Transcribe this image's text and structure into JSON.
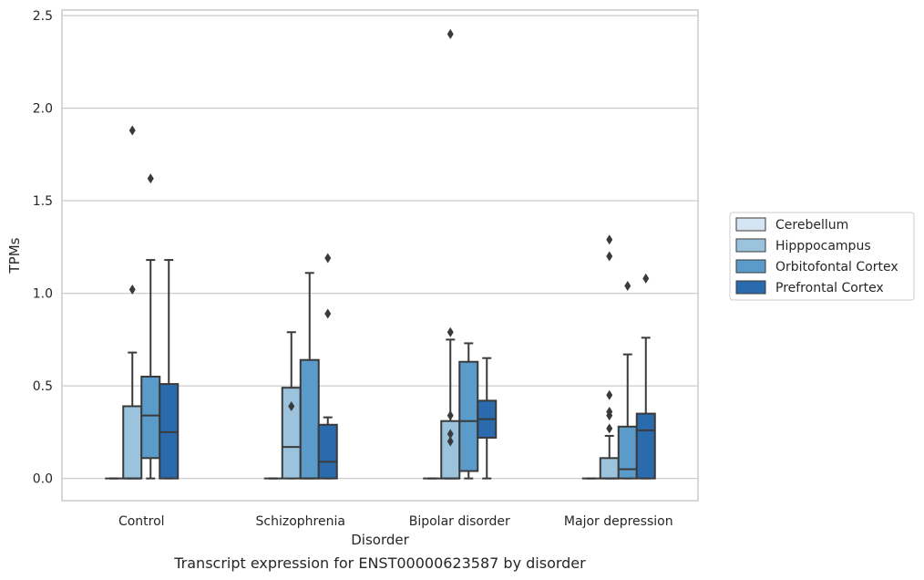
{
  "chart_data": {
    "type": "box",
    "title": "",
    "caption": "Transcript expression for ENST00000623587 by disorder",
    "xlabel": "Disorder",
    "ylabel": "TPMs",
    "ylim": [
      -0.12,
      2.53
    ],
    "yticks": [
      0.0,
      0.5,
      1.0,
      1.5,
      2.0,
      2.5
    ],
    "ytick_labels": [
      "0.0",
      "0.5",
      "1.0",
      "1.5",
      "2.0",
      "2.5"
    ],
    "grid": "horizontal",
    "legend_position": "right",
    "categories": [
      "Control",
      "Schizophrenia",
      "Bipolar disorder",
      "Major depression"
    ],
    "series": [
      {
        "name": "Cerebellum",
        "color": "#d4e4f3",
        "boxes": [
          {
            "whisker_low": 0,
            "q1": 0,
            "median": 0,
            "q3": 0,
            "whisker_high": 0,
            "outliers": []
          },
          {
            "whisker_low": 0,
            "q1": 0,
            "median": 0,
            "q3": 0,
            "whisker_high": 0,
            "outliers": []
          },
          {
            "whisker_low": 0,
            "q1": 0,
            "median": 0,
            "q3": 0,
            "whisker_high": 0,
            "outliers": []
          },
          {
            "whisker_low": 0,
            "q1": 0,
            "median": 0,
            "q3": 0,
            "whisker_high": 0,
            "outliers": []
          }
        ]
      },
      {
        "name": "Hipppocampus",
        "color": "#9bc3de",
        "boxes": [
          {
            "whisker_low": 0,
            "q1": 0,
            "median": 0,
            "q3": 0.39,
            "whisker_high": 0.68,
            "outliers": [
              1.02,
              1.88
            ]
          },
          {
            "whisker_low": 0,
            "q1": 0,
            "median": 0.17,
            "q3": 0.49,
            "whisker_high": 0.79,
            "outliers": [
              0.39
            ]
          },
          {
            "whisker_low": 0,
            "q1": 0,
            "median": 0,
            "q3": 0.31,
            "whisker_high": 0.75,
            "outliers": [
              0.2,
              0.24,
              0.34,
              0.79,
              2.4
            ]
          },
          {
            "whisker_low": 0,
            "q1": 0,
            "median": 0,
            "q3": 0.11,
            "whisker_high": 0.23,
            "outliers": [
              0.27,
              0.34,
              0.36,
              0.45,
              1.2,
              1.29
            ]
          }
        ]
      },
      {
        "name": "Orbitofontal Cortex",
        "color": "#5a9bc9",
        "boxes": [
          {
            "whisker_low": 0,
            "q1": 0.11,
            "median": 0.34,
            "q3": 0.55,
            "whisker_high": 1.18,
            "outliers": [
              1.62
            ]
          },
          {
            "whisker_low": 0,
            "q1": 0,
            "median": 0,
            "q3": 0.64,
            "whisker_high": 1.11,
            "outliers": []
          },
          {
            "whisker_low": 0,
            "q1": 0.04,
            "median": 0.31,
            "q3": 0.63,
            "whisker_high": 0.73,
            "outliers": []
          },
          {
            "whisker_low": 0,
            "q1": 0,
            "median": 0.05,
            "q3": 0.28,
            "whisker_high": 0.67,
            "outliers": [
              1.04
            ]
          }
        ]
      },
      {
        "name": "Prefrontal Cortex",
        "color": "#2a6bad",
        "boxes": [
          {
            "whisker_low": 0,
            "q1": 0,
            "median": 0.25,
            "q3": 0.51,
            "whisker_high": 1.18,
            "outliers": []
          },
          {
            "whisker_low": 0,
            "q1": 0,
            "median": 0.09,
            "q3": 0.29,
            "whisker_high": 0.33,
            "outliers": [
              0.89,
              1.19
            ]
          },
          {
            "whisker_low": 0,
            "q1": 0.22,
            "median": 0.32,
            "q3": 0.42,
            "whisker_high": 0.65,
            "outliers": []
          },
          {
            "whisker_low": 0,
            "q1": 0,
            "median": 0.26,
            "q3": 0.35,
            "whisker_high": 0.76,
            "outliers": [
              1.08
            ]
          }
        ]
      }
    ]
  }
}
